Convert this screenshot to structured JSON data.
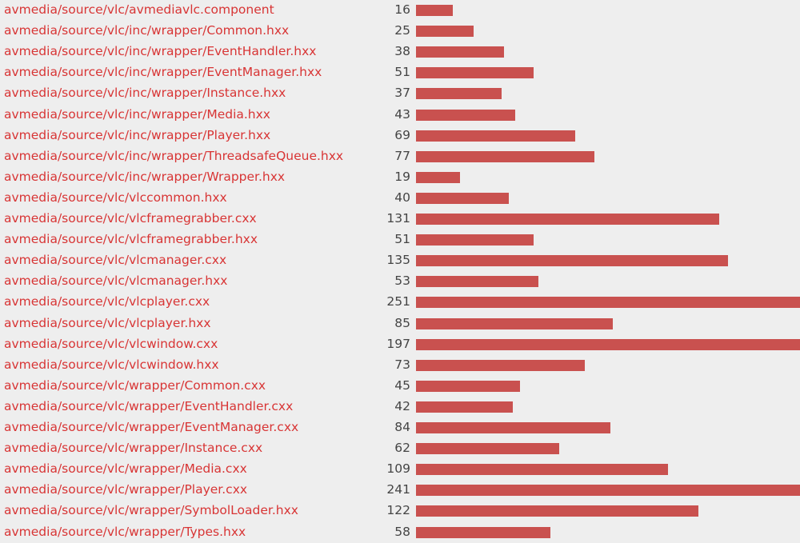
{
  "rows": [
    {
      "file": "avmedia/source/vlc/avmediavlc.component",
      "lines": 16
    },
    {
      "file": "avmedia/source/vlc/inc/wrapper/Common.hxx",
      "lines": 25
    },
    {
      "file": "avmedia/source/vlc/inc/wrapper/EventHandler.hxx",
      "lines": 38
    },
    {
      "file": "avmedia/source/vlc/inc/wrapper/EventManager.hxx",
      "lines": 51
    },
    {
      "file": "avmedia/source/vlc/inc/wrapper/Instance.hxx",
      "lines": 37
    },
    {
      "file": "avmedia/source/vlc/inc/wrapper/Media.hxx",
      "lines": 43
    },
    {
      "file": "avmedia/source/vlc/inc/wrapper/Player.hxx",
      "lines": 69
    },
    {
      "file": "avmedia/source/vlc/inc/wrapper/ThreadsafeQueue.hxx",
      "lines": 77
    },
    {
      "file": "avmedia/source/vlc/inc/wrapper/Wrapper.hxx",
      "lines": 19
    },
    {
      "file": "avmedia/source/vlc/vlccommon.hxx",
      "lines": 40
    },
    {
      "file": "avmedia/source/vlc/vlcframegrabber.cxx",
      "lines": 131
    },
    {
      "file": "avmedia/source/vlc/vlcframegrabber.hxx",
      "lines": 51
    },
    {
      "file": "avmedia/source/vlc/vlcmanager.cxx",
      "lines": 135
    },
    {
      "file": "avmedia/source/vlc/vlcmanager.hxx",
      "lines": 53
    },
    {
      "file": "avmedia/source/vlc/vlcplayer.cxx",
      "lines": 251
    },
    {
      "file": "avmedia/source/vlc/vlcplayer.hxx",
      "lines": 85
    },
    {
      "file": "avmedia/source/vlc/vlcwindow.cxx",
      "lines": 197
    },
    {
      "file": "avmedia/source/vlc/vlcwindow.hxx",
      "lines": 73
    },
    {
      "file": "avmedia/source/vlc/wrapper/Common.cxx",
      "lines": 45
    },
    {
      "file": "avmedia/source/vlc/wrapper/EventHandler.cxx",
      "lines": 42
    },
    {
      "file": "avmedia/source/vlc/wrapper/EventManager.cxx",
      "lines": 84
    },
    {
      "file": "avmedia/source/vlc/wrapper/Instance.cxx",
      "lines": 62
    },
    {
      "file": "avmedia/source/vlc/wrapper/Media.cxx",
      "lines": 109
    },
    {
      "file": "avmedia/source/vlc/wrapper/Player.cxx",
      "lines": 241
    },
    {
      "file": "avmedia/source/vlc/wrapper/SymbolLoader.hxx",
      "lines": 122
    },
    {
      "file": "avmedia/source/vlc/wrapper/Types.hxx",
      "lines": 58
    }
  ]
}
